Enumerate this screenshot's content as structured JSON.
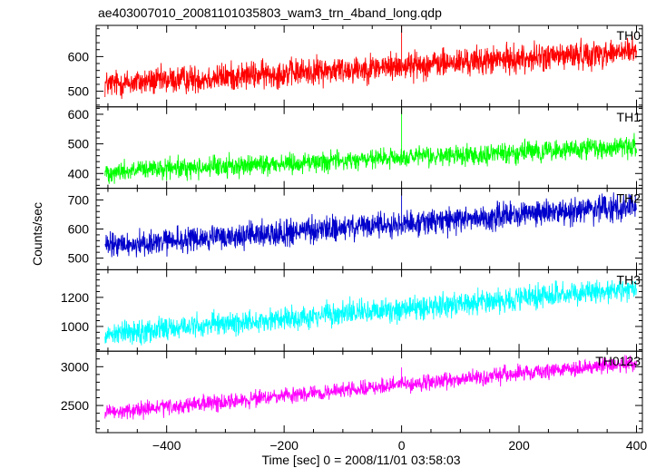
{
  "chart_data": {
    "type": "line",
    "title": "ae403007010_20081101035803_wam3_trn_4band_long.qdp",
    "xlabel": "Time [sec] 0 = 2008/11/01 03:58:03",
    "ylabel": "Counts/sec",
    "xlim": [
      -520,
      410
    ],
    "x_ticks": [
      -400,
      -200,
      0,
      200,
      400
    ],
    "x_tick_labels": [
      "−400",
      "−200",
      "0",
      "200",
      "400"
    ],
    "x_range": [
      -505,
      400
    ],
    "grid": false,
    "legend": "none",
    "panels": [
      {
        "name": "TH0",
        "color": "#ff0000",
        "ylim": [
          455,
          690
        ],
        "y_ticks": [
          500,
          600
        ],
        "trend_start": 520,
        "trend_end": 615,
        "noise": 20,
        "spike": {
          "x": 0,
          "y": 690
        }
      },
      {
        "name": "TH1",
        "color": "#00ff00",
        "ylim": [
          350,
          625
        ],
        "y_ticks": [
          400,
          500,
          600
        ],
        "trend_start": 405,
        "trend_end": 490,
        "noise": 17,
        "spike": {
          "x": 0,
          "y": 620
        }
      },
      {
        "name": "TH2",
        "color": "#0000cc",
        "ylim": [
          460,
          740
        ],
        "y_ticks": [
          500,
          600,
          700
        ],
        "trend_start": 540,
        "trend_end": 680,
        "noise": 22,
        "spike": {
          "x": 0,
          "y": 740
        }
      },
      {
        "name": "TH3",
        "color": "#00ffff",
        "ylim": [
          830,
          1390
        ],
        "y_ticks": [
          1000,
          1200
        ],
        "trend_start": 950,
        "trend_end": 1260,
        "noise": 40,
        "spike": null
      },
      {
        "name": "TH0123",
        "color": "#ff00ff",
        "ylim": [
          2150,
          3200
        ],
        "y_ticks": [
          2500,
          3000
        ],
        "trend_start": 2400,
        "trend_end": 3050,
        "noise": 50,
        "spike": {
          "x": 0,
          "y": 2990
        }
      }
    ]
  }
}
